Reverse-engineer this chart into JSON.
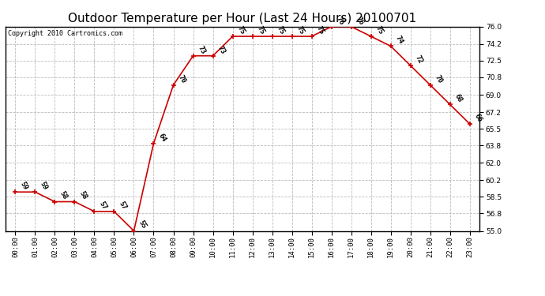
{
  "title": "Outdoor Temperature per Hour (Last 24 Hours) 20100701",
  "copyright": "Copyright 2010 Cartronics.com",
  "hours": [
    0,
    1,
    2,
    3,
    4,
    5,
    6,
    7,
    8,
    9,
    10,
    11,
    12,
    13,
    14,
    15,
    16,
    17,
    18,
    19,
    20,
    21,
    22,
    23
  ],
  "labels": [
    "00:00",
    "01:00",
    "02:00",
    "03:00",
    "04:00",
    "05:00",
    "06:00",
    "07:00",
    "08:00",
    "09:00",
    "10:00",
    "11:00",
    "12:00",
    "13:00",
    "14:00",
    "15:00",
    "16:00",
    "17:00",
    "18:00",
    "19:00",
    "20:00",
    "21:00",
    "22:00",
    "23:00"
  ],
  "temps": [
    59,
    59,
    58,
    58,
    57,
    57,
    55,
    64,
    70,
    73,
    73,
    75,
    75,
    75,
    75,
    75,
    76,
    76,
    75,
    74,
    72,
    70,
    68,
    66
  ],
  "line_color": "#cc0000",
  "marker_color": "#cc0000",
  "bg_color": "#ffffff",
  "grid_color": "#bbbbbb",
  "ylim_min": 55.0,
  "ylim_max": 76.0,
  "yticks": [
    55.0,
    56.8,
    58.5,
    60.2,
    62.0,
    63.8,
    65.5,
    67.2,
    69.0,
    70.8,
    72.5,
    74.2,
    76.0
  ],
  "title_fontsize": 11,
  "label_fontsize": 6.5,
  "annotation_fontsize": 6.5,
  "copyright_fontsize": 6
}
